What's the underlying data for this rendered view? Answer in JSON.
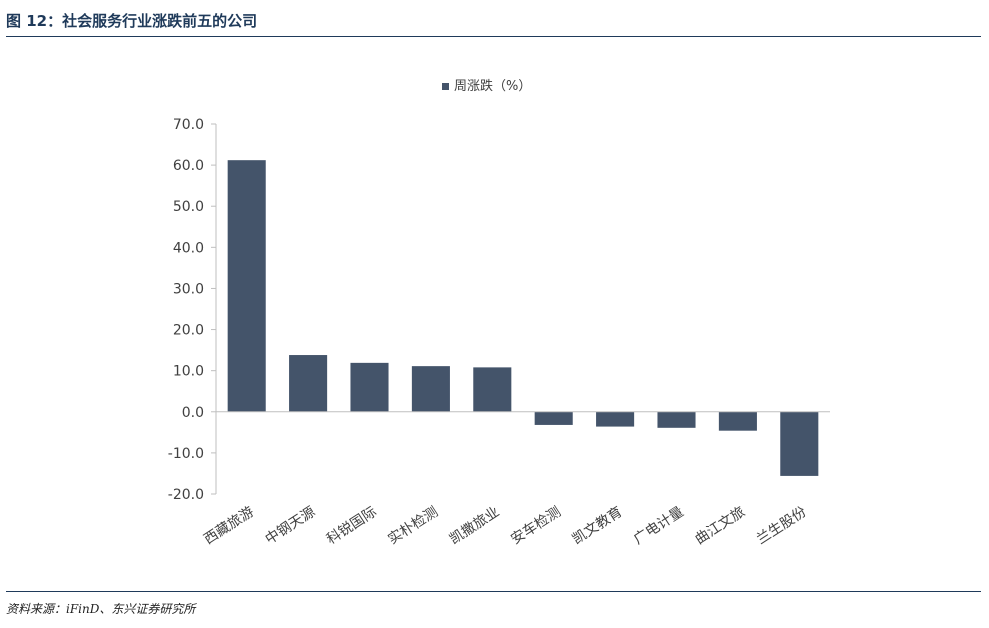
{
  "header": {
    "title": "图 12：社会服务行业涨跌前五的公司"
  },
  "footer": {
    "source": "资料来源：iFinD、东兴证券研究所"
  },
  "colors": {
    "bar": "#44546a",
    "axis": "#bfbfbf",
    "text": "#404040",
    "rule": "#1f3a5a"
  },
  "chart_data": {
    "type": "bar",
    "title": "",
    "legend_position": "top-center",
    "grid": false,
    "ylim": [
      -20,
      70
    ],
    "yticks": [
      70,
      60,
      50,
      40,
      30,
      20,
      10,
      0,
      -10,
      -20
    ],
    "ytick_labels": [
      "70.0",
      "60.0",
      "50.0",
      "40.0",
      "30.0",
      "20.0",
      "10.0",
      "0.0",
      "-10.0",
      "-20.0"
    ],
    "categories": [
      "西藏旅游",
      "中钢天源",
      "科锐国际",
      "实朴检测",
      "凯撒旅业",
      "安车检测",
      "凯文教育",
      "广电计量",
      "曲江文旅",
      "兰生股份"
    ],
    "series": [
      {
        "name": "周涨跌（%）",
        "values": [
          61.2,
          13.8,
          11.9,
          11.1,
          10.8,
          -3.2,
          -3.6,
          -3.9,
          -4.6,
          -15.6
        ]
      }
    ]
  }
}
